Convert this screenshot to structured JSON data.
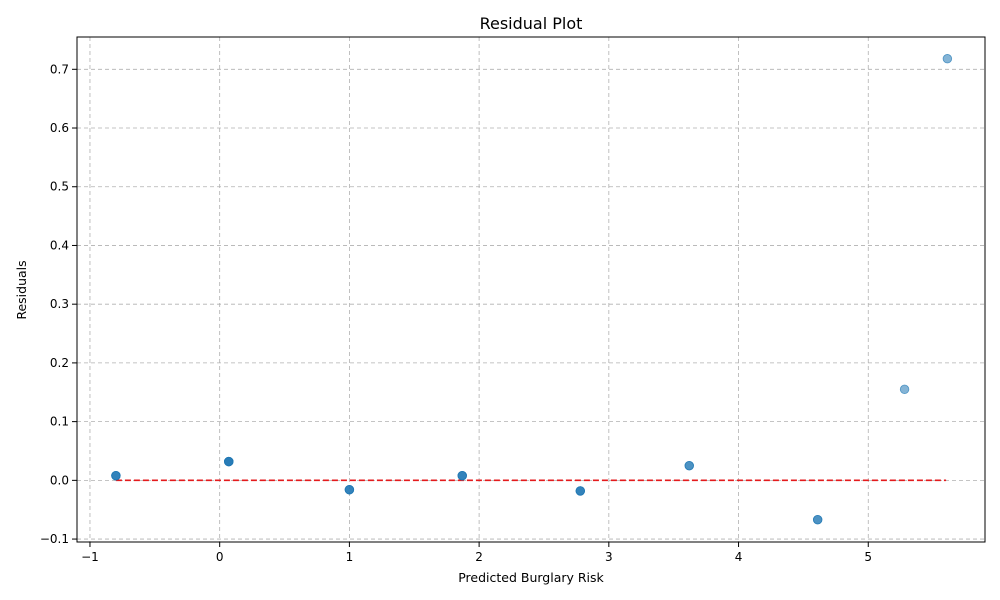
{
  "chart_data": {
    "type": "scatter",
    "title": "Residual Plot",
    "xlabel": "Predicted Burglary Risk",
    "ylabel": "Residuals",
    "xlim": [
      -1.1,
      5.9
    ],
    "ylim": [
      -0.105,
      0.755
    ],
    "xticks": [
      -1,
      0,
      1,
      2,
      3,
      4,
      5
    ],
    "yticks": [
      -0.1,
      0.0,
      0.1,
      0.2,
      0.3,
      0.4,
      0.5,
      0.6,
      0.7
    ],
    "ytick_labels": [
      "−0.1",
      "0.0",
      "0.1",
      "0.2",
      "0.3",
      "0.4",
      "0.5",
      "0.6",
      "0.7"
    ],
    "xtick_labels": [
      "−1",
      "0",
      "1",
      "2",
      "3",
      "4",
      "5"
    ],
    "grid": true,
    "point_color": "#1f77b4",
    "reference_line": {
      "y": 0.0,
      "x_range": [
        -0.8,
        5.6
      ],
      "color": "#e41a1c",
      "style": "dashed"
    },
    "points": [
      {
        "x": -0.8,
        "y": 0.008
      },
      {
        "x": -0.8,
        "y": 0.008
      },
      {
        "x": -0.8,
        "y": 0.008
      },
      {
        "x": 0.07,
        "y": 0.032
      },
      {
        "x": 0.07,
        "y": 0.032
      },
      {
        "x": 0.07,
        "y": 0.032
      },
      {
        "x": 0.07,
        "y": 0.032
      },
      {
        "x": 1.0,
        "y": -0.016
      },
      {
        "x": 1.0,
        "y": -0.016
      },
      {
        "x": 1.0,
        "y": -0.016
      },
      {
        "x": 1.87,
        "y": 0.008
      },
      {
        "x": 1.87,
        "y": 0.008
      },
      {
        "x": 1.87,
        "y": 0.008
      },
      {
        "x": 2.78,
        "y": -0.018
      },
      {
        "x": 2.78,
        "y": -0.018
      },
      {
        "x": 2.78,
        "y": -0.018
      },
      {
        "x": 3.62,
        "y": 0.025
      },
      {
        "x": 3.62,
        "y": 0.025
      },
      {
        "x": 4.61,
        "y": -0.067
      },
      {
        "x": 4.61,
        "y": -0.067
      },
      {
        "x": 5.28,
        "y": 0.155
      },
      {
        "x": 5.61,
        "y": 0.718
      }
    ]
  }
}
